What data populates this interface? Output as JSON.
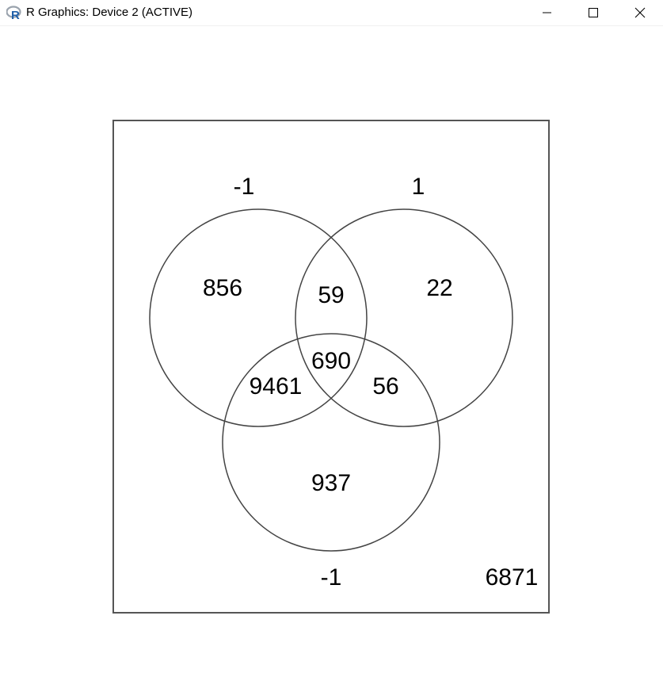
{
  "window": {
    "title": "R Graphics: Device 2 (ACTIVE)",
    "app_icon": "r-logo-icon",
    "controls": {
      "minimize": "minimize-icon",
      "maximize": "maximize-icon",
      "close": "close-icon"
    }
  },
  "venn": {
    "set_labels": {
      "left": "-1",
      "right": "1",
      "bottom": "-1"
    },
    "regions": {
      "left_only": "856",
      "left_right": "59",
      "right_only": "22",
      "all_three": "690",
      "left_bottom": "9461",
      "right_bottom": "56",
      "bottom_only": "937",
      "outside": "6871"
    }
  }
}
